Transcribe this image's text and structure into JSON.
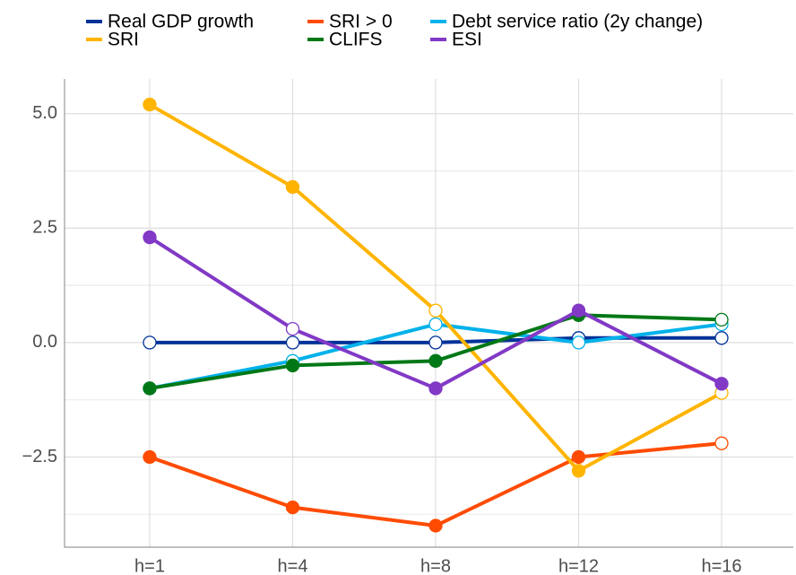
{
  "chart_data": {
    "type": "line",
    "categories": [
      "h=1",
      "h=4",
      "h=8",
      "h=12",
      "h=16"
    ],
    "series": [
      {
        "name": "Real GDP growth",
        "color": "#003299",
        "values": [
          0,
          0,
          0,
          0.1,
          0.1
        ],
        "markers_filled": [
          false,
          false,
          false,
          false,
          false
        ]
      },
      {
        "name": "SRI > 0",
        "color": "#ff4b00",
        "values": [
          -2.5,
          -3.6,
          -4.0,
          -2.5,
          -2.2
        ],
        "markers_filled": [
          true,
          true,
          true,
          true,
          false
        ]
      },
      {
        "name": "Debt service ratio (2y change)",
        "color": "#00b1ea",
        "values": [
          -1.0,
          -0.4,
          0.4,
          0.0,
          0.4
        ],
        "markers_filled": [
          true,
          false,
          false,
          false,
          false
        ]
      },
      {
        "name": "SRI",
        "color": "#ffb400",
        "values": [
          5.2,
          3.4,
          0.7,
          -2.8,
          -1.1
        ],
        "markers_filled": [
          true,
          true,
          false,
          true,
          false
        ]
      },
      {
        "name": "CLIFS",
        "color": "#007816",
        "values": [
          -1.0,
          -0.5,
          -0.4,
          0.6,
          0.5
        ],
        "markers_filled": [
          true,
          true,
          true,
          true,
          false
        ]
      },
      {
        "name": "ESI",
        "color": "#8139c6",
        "values": [
          2.3,
          0.3,
          -1.0,
          0.7,
          -0.9
        ],
        "markers_filled": [
          true,
          false,
          true,
          true,
          true
        ]
      }
    ],
    "ylim": [
      -4.47,
      5.76
    ],
    "yticks": [
      {
        "value": -2.5,
        "label": "−2.5"
      },
      {
        "value": 0,
        "label": "0.0"
      },
      {
        "value": 2.5,
        "label": "2.5"
      },
      {
        "value": 5,
        "label": "5.0"
      }
    ],
    "grid": true
  }
}
